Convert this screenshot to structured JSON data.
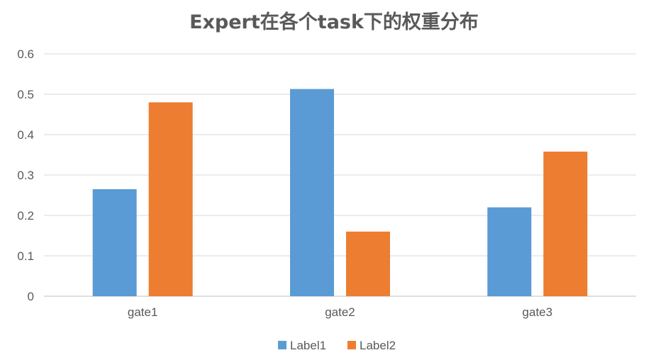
{
  "chart_data": {
    "type": "bar",
    "title": "Expert在各个task下的权重分布",
    "xlabel": "",
    "ylabel": "",
    "categories": [
      "gate1",
      "gate2",
      "gate3"
    ],
    "series": [
      {
        "name": "Label1",
        "values": [
          0.265,
          0.513,
          0.22
        ],
        "color": "#5b9bd5"
      },
      {
        "name": "Label2",
        "values": [
          0.48,
          0.16,
          0.358
        ],
        "color": "#ed7d31"
      }
    ],
    "ylim": [
      0,
      0.6
    ],
    "yticks": [
      "0",
      "0.1",
      "0.2",
      "0.3",
      "0.4",
      "0.5",
      "0.6"
    ],
    "grid": true,
    "legend_position": "bottom"
  }
}
